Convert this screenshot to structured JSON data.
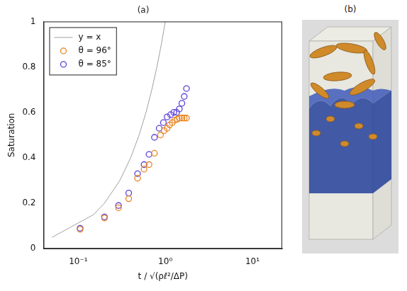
{
  "chart_data": {
    "type": "scatter",
    "title": "(a)",
    "x_label": "t / √(ρℓ²/ΔP)",
    "y_label": "Saturation",
    "log": "x",
    "grid": false,
    "legend": "upper left",
    "xlim": [
      0.04,
      22
    ],
    "xticks": [
      {
        "value": 0.1,
        "label": "10⁻¹"
      },
      {
        "value": 1,
        "label": "10⁰"
      },
      {
        "value": 10,
        "label": "10¹"
      }
    ],
    "ylim": [
      0,
      1
    ],
    "yticks": [
      0,
      0.2,
      0.4,
      0.6,
      0.8,
      1
    ],
    "series": [
      {
        "name": "y = x",
        "type": "line",
        "color": "#a0a0a0",
        "line_style": "solid",
        "x": [
          0.05,
          0.15,
          0.2,
          0.3,
          0.4,
          0.5,
          0.6,
          0.7,
          0.8,
          0.9,
          1.0
        ],
        "values": [
          0.05,
          0.15,
          0.2,
          0.3,
          0.4,
          0.5,
          0.6,
          0.7,
          0.8,
          0.9,
          1.0
        ]
      },
      {
        "name": "θ = 96°",
        "type": "scatter",
        "color": "#e8821e",
        "marker": "circle",
        "x": [
          0.105,
          0.2,
          0.29,
          0.38,
          0.48,
          0.57,
          0.65,
          0.75,
          0.88,
          0.97,
          1.05,
          1.12,
          1.2,
          1.28,
          1.37,
          1.45,
          1.55,
          1.65,
          1.75
        ],
        "values": [
          0.085,
          0.135,
          0.18,
          0.22,
          0.31,
          0.35,
          0.37,
          0.42,
          0.5,
          0.52,
          0.53,
          0.545,
          0.555,
          0.565,
          0.57,
          0.575,
          0.575,
          0.575,
          0.575
        ]
      },
      {
        "name": "θ = 85°",
        "type": "scatter",
        "color": "#5a3fd8",
        "marker": "circle",
        "x": [
          0.105,
          0.2,
          0.29,
          0.38,
          0.48,
          0.57,
          0.65,
          0.75,
          0.85,
          0.95,
          1.05,
          1.15,
          1.25,
          1.35,
          1.45,
          1.55,
          1.65,
          1.75
        ],
        "values": [
          0.09,
          0.14,
          0.19,
          0.245,
          0.33,
          0.37,
          0.415,
          0.49,
          0.53,
          0.555,
          0.58,
          0.59,
          0.6,
          0.6,
          0.615,
          0.64,
          0.67,
          0.705
        ]
      }
    ]
  },
  "image_panel": {
    "title": "(b)"
  }
}
